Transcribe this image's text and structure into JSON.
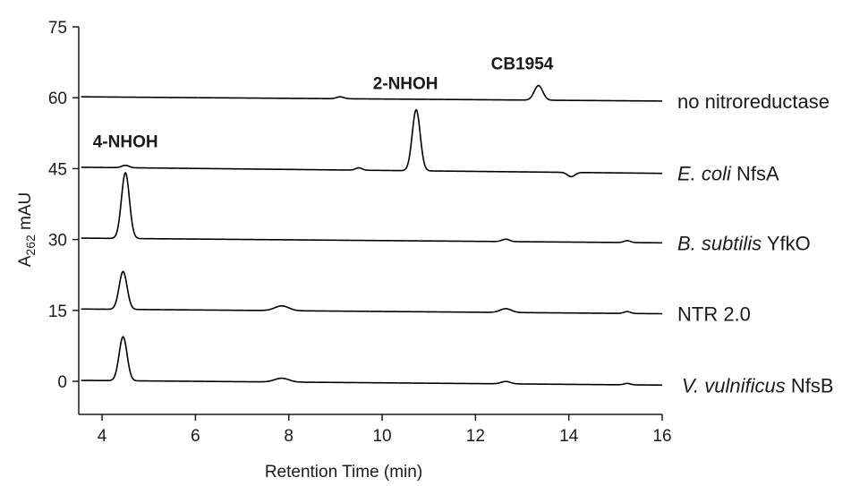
{
  "chart_data": {
    "type": "line",
    "title": "",
    "xlabel": "Retention Time (min)",
    "ylabel_main": "A",
    "ylabel_sub": "262",
    "ylabel_unit": " mAU",
    "xlim": [
      3.5,
      16
    ],
    "ylim": [
      -7,
      75
    ],
    "xticks": [
      4,
      6,
      8,
      10,
      12,
      14,
      16
    ],
    "yticks": [
      0,
      15,
      30,
      45,
      60,
      75
    ],
    "grid": false,
    "legend": "none",
    "line_color": "#000000",
    "series": [
      {
        "name": "no nitroreductase",
        "label_parts": [
          {
            "text": "no nitroreductase",
            "italic": false
          }
        ],
        "baseline_start": 60.2,
        "baseline_end": 59.3,
        "peaks": [
          {
            "x": 9.1,
            "height": 0.4,
            "width": 0.08
          },
          {
            "x": 13.35,
            "height": 3.1,
            "width": 0.09
          }
        ]
      },
      {
        "name": "E. coli NfsA",
        "label_parts": [
          {
            "text": "E. coli",
            "italic": true
          },
          {
            "text": " NfsA",
            "italic": false
          }
        ],
        "baseline_start": 45.3,
        "baseline_end": 44.0,
        "peaks": [
          {
            "x": 4.5,
            "height": 0.5,
            "width": 0.08
          },
          {
            "x": 9.5,
            "height": 0.5,
            "width": 0.07
          },
          {
            "x": 10.73,
            "height": 12.9,
            "width": 0.085
          },
          {
            "x": 14.05,
            "height": -0.9,
            "width": 0.08
          }
        ]
      },
      {
        "name": "B. subtilis YfkO",
        "label_parts": [
          {
            "text": "B. subtilis",
            "italic": true
          },
          {
            "text": " YfkO",
            "italic": false
          }
        ],
        "baseline_start": 30.3,
        "baseline_end": 29.3,
        "peaks": [
          {
            "x": 4.5,
            "height": 13.9,
            "width": 0.085
          },
          {
            "x": 12.65,
            "height": 0.5,
            "width": 0.08
          },
          {
            "x": 15.25,
            "height": 0.4,
            "width": 0.07
          }
        ]
      },
      {
        "name": "NTR 2.0",
        "label_parts": [
          {
            "text": "NTR 2.0",
            "italic": false
          }
        ],
        "baseline_start": 15.3,
        "baseline_end": 14.3,
        "peaks": [
          {
            "x": 4.45,
            "height": 8.0,
            "width": 0.085
          },
          {
            "x": 7.85,
            "height": 1.0,
            "width": 0.15
          },
          {
            "x": 12.65,
            "height": 0.8,
            "width": 0.12
          },
          {
            "x": 15.25,
            "height": 0.4,
            "width": 0.07
          }
        ]
      },
      {
        "name": "V. vulnificus NfsB",
        "label_parts": [
          {
            "text": "V. vulnificus",
            "italic": true
          },
          {
            "text": " NfsB",
            "italic": false
          }
        ],
        "baseline_start": 0.2,
        "baseline_end": -0.8,
        "peaks": [
          {
            "x": 4.45,
            "height": 9.3,
            "width": 0.085
          },
          {
            "x": 7.85,
            "height": 0.8,
            "width": 0.15
          },
          {
            "x": 12.65,
            "height": 0.5,
            "width": 0.1
          },
          {
            "x": 15.25,
            "height": 0.3,
            "width": 0.07
          }
        ]
      }
    ],
    "annotations": [
      {
        "text": "4-NHOH",
        "x": 4.5,
        "y": 49.5
      },
      {
        "text": "2-NHOH",
        "x": 10.5,
        "y": 61.8
      },
      {
        "text": "CB1954",
        "x": 13.0,
        "y": 66.0
      }
    ]
  }
}
